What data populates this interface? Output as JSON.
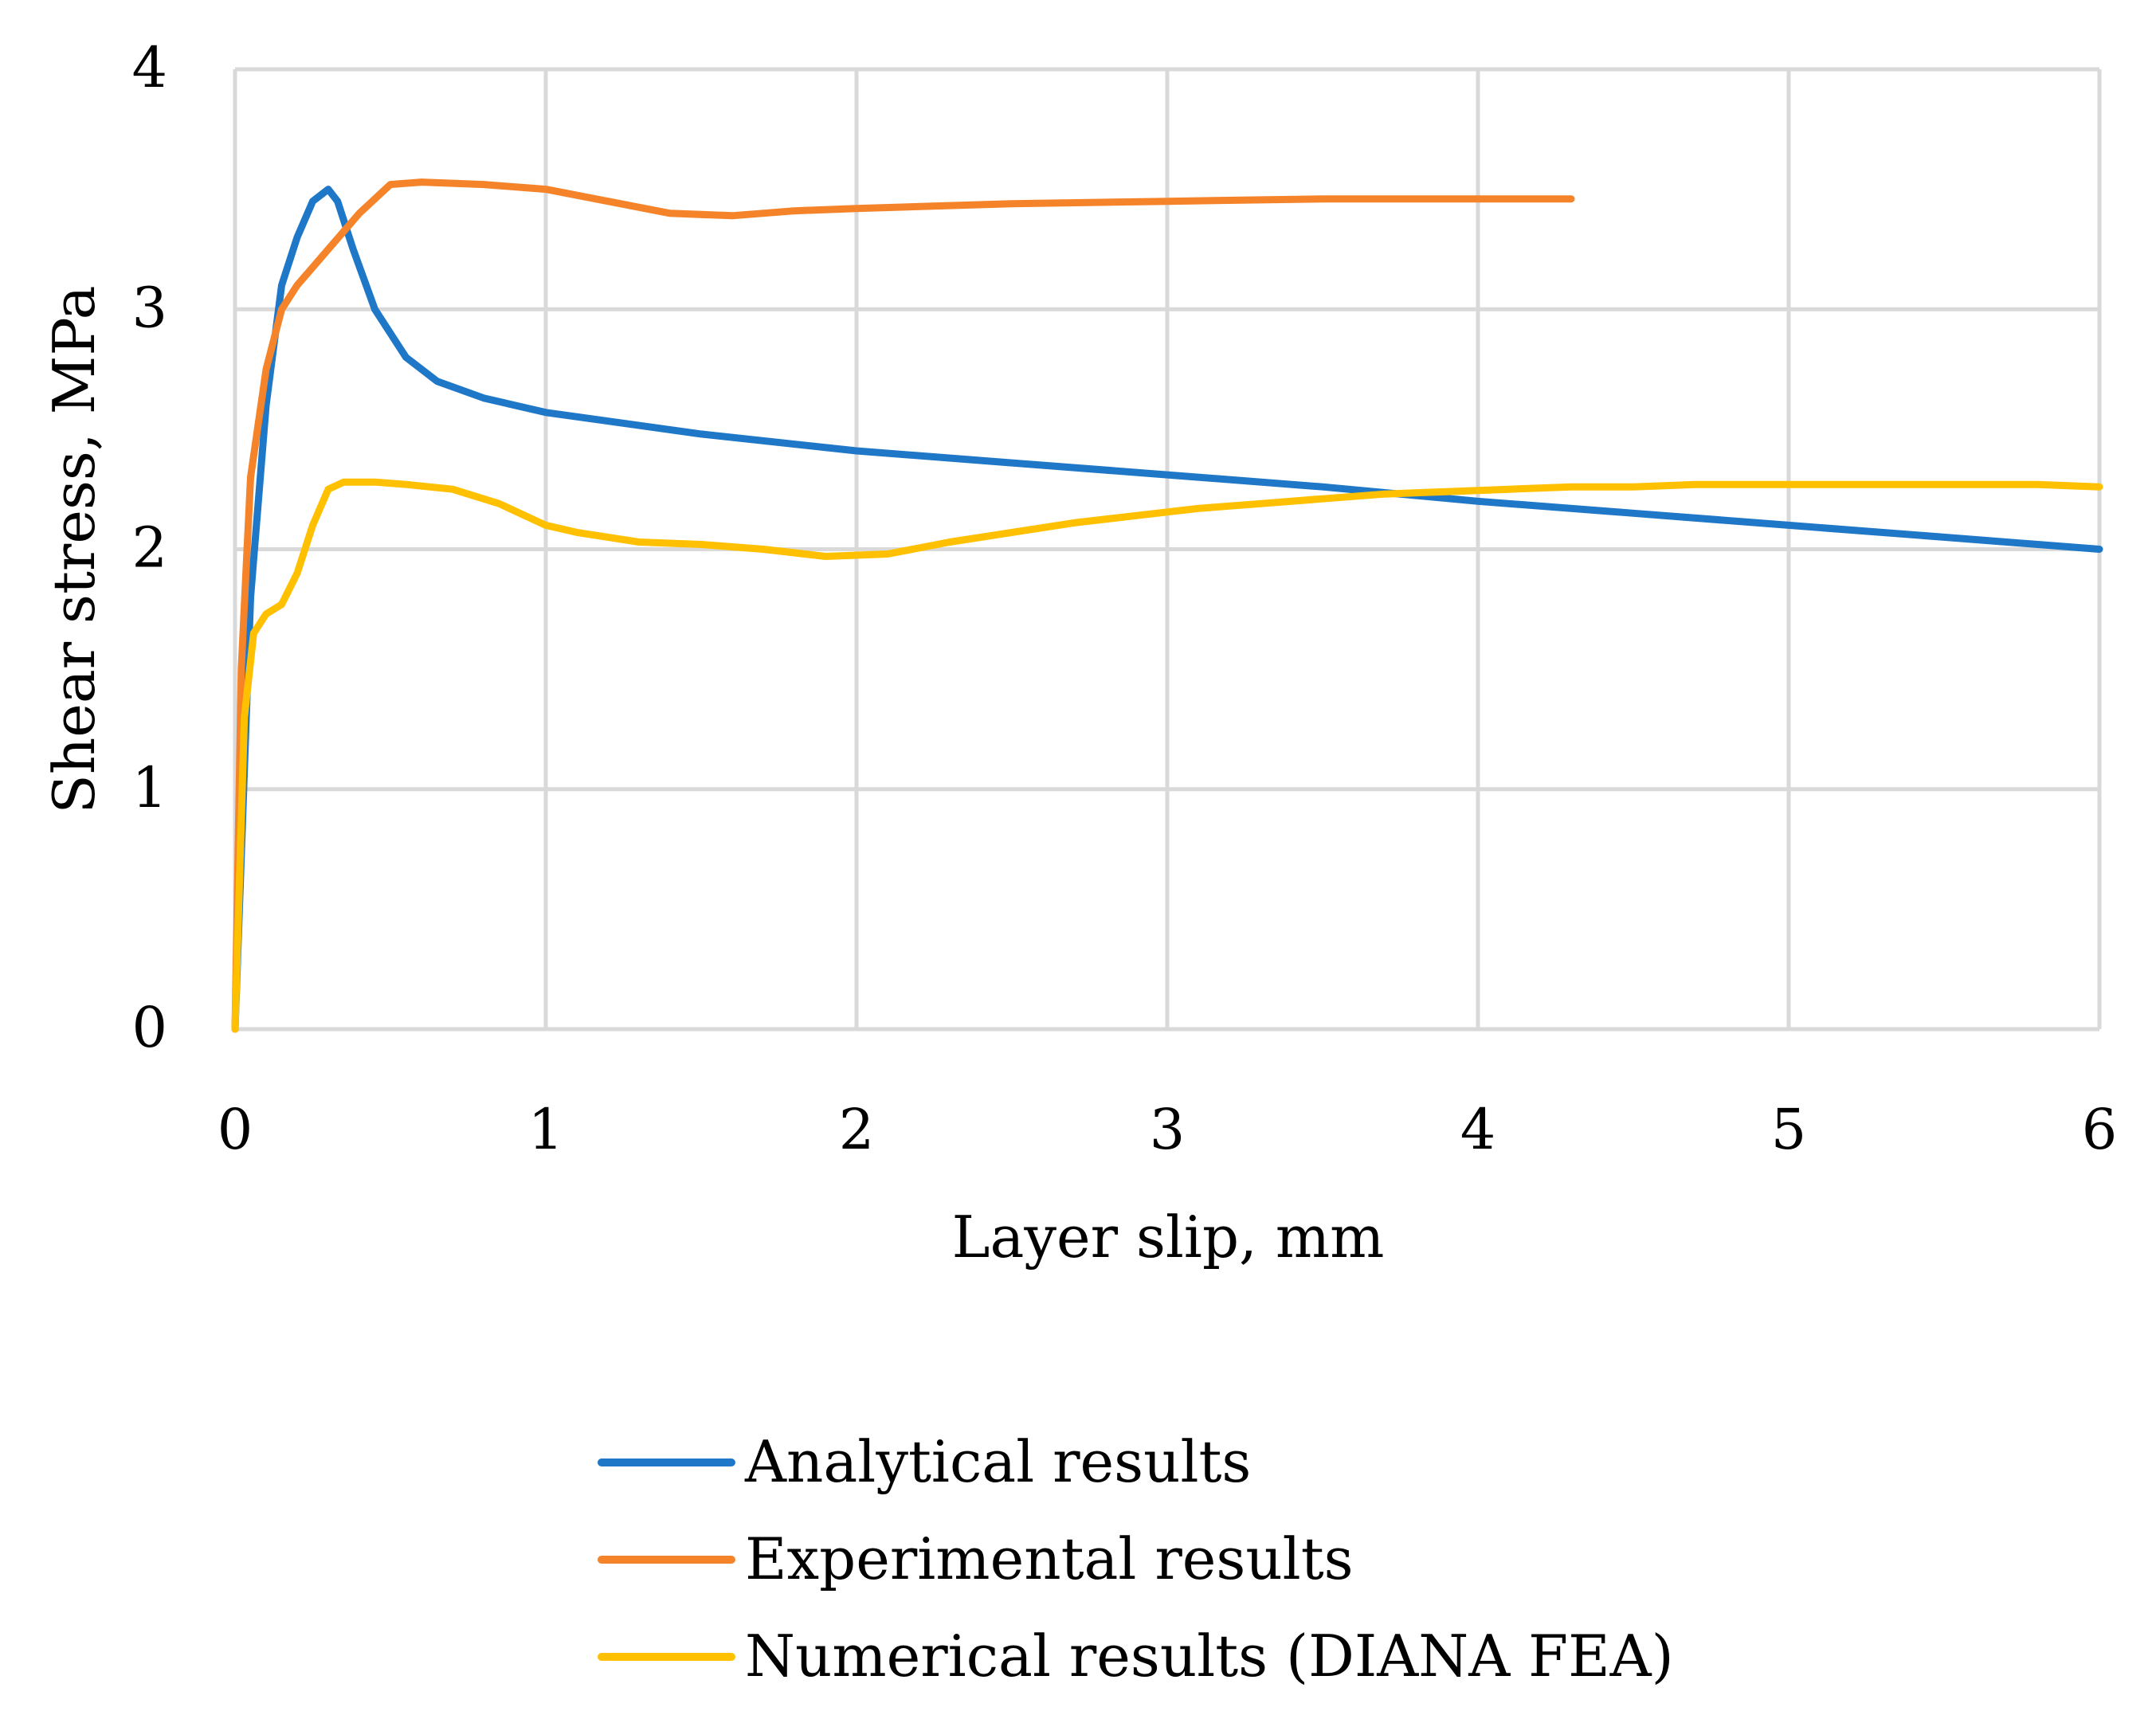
{
  "chart_data": {
    "type": "line",
    "title": "",
    "xlabel": "Layer slip, mm",
    "ylabel": "Shear stress, MPa",
    "xlim": [
      0,
      6
    ],
    "ylim": [
      0,
      4
    ],
    "x_ticks": [
      "0",
      "1",
      "2",
      "3",
      "4",
      "5",
      "6"
    ],
    "y_ticks": [
      "0",
      "1",
      "2",
      "3",
      "4"
    ],
    "grid": true,
    "legend_position": "bottom",
    "series": [
      {
        "name": "Analytical results",
        "color": "#1f77c8",
        "x": [
          0,
          0.05,
          0.1,
          0.15,
          0.2,
          0.25,
          0.3,
          0.33,
          0.38,
          0.45,
          0.55,
          0.65,
          0.8,
          1.0,
          1.5,
          2.0,
          2.5,
          3.0,
          3.5,
          4.0,
          4.5,
          5.0,
          5.5,
          6.0
        ],
        "y": [
          0,
          1.8,
          2.6,
          3.1,
          3.3,
          3.45,
          3.5,
          3.45,
          3.25,
          3.0,
          2.8,
          2.7,
          2.63,
          2.57,
          2.48,
          2.41,
          2.36,
          2.31,
          2.26,
          2.2,
          2.15,
          2.1,
          2.05,
          2.0
        ]
      },
      {
        "name": "Experimental results",
        "color": "#f5832a",
        "x": [
          0,
          0.02,
          0.05,
          0.1,
          0.15,
          0.2,
          0.3,
          0.4,
          0.5,
          0.6,
          0.8,
          1.0,
          1.2,
          1.4,
          1.6,
          1.8,
          2.0,
          2.5,
          3.0,
          3.5,
          4.0,
          4.3
        ],
        "y": [
          0,
          1.5,
          2.3,
          2.75,
          3.0,
          3.1,
          3.25,
          3.4,
          3.52,
          3.53,
          3.52,
          3.5,
          3.45,
          3.4,
          3.39,
          3.41,
          3.42,
          3.44,
          3.45,
          3.46,
          3.46,
          3.46
        ]
      },
      {
        "name": "Numerical results (DIANA FEA)",
        "color": "#ffc000",
        "x": [
          0,
          0.03,
          0.06,
          0.1,
          0.15,
          0.2,
          0.25,
          0.3,
          0.35,
          0.45,
          0.55,
          0.7,
          0.85,
          1.0,
          1.1,
          1.2,
          1.3,
          1.5,
          1.7,
          1.9,
          2.1,
          2.3,
          2.5,
          2.7,
          2.9,
          3.1,
          3.3,
          3.5,
          3.7,
          3.9,
          4.1,
          4.3,
          4.5,
          4.7,
          5.0,
          5.3,
          5.5,
          5.8,
          6.0
        ],
        "y": [
          0,
          1.3,
          1.65,
          1.73,
          1.77,
          1.9,
          2.1,
          2.25,
          2.28,
          2.28,
          2.27,
          2.25,
          2.19,
          2.1,
          2.07,
          2.05,
          2.03,
          2.02,
          2.0,
          1.97,
          1.98,
          2.03,
          2.07,
          2.11,
          2.14,
          2.17,
          2.19,
          2.21,
          2.23,
          2.24,
          2.25,
          2.26,
          2.26,
          2.27,
          2.27,
          2.27,
          2.27,
          2.27,
          2.26
        ]
      }
    ]
  }
}
